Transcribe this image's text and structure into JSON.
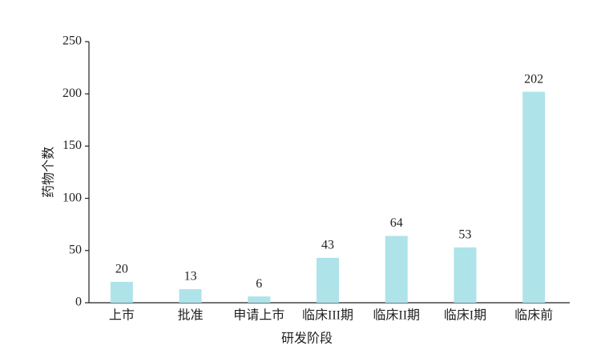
{
  "chart_data": {
    "type": "bar",
    "categories": [
      "上市",
      "批准",
      "申请上市",
      "临床III期",
      "临床II期",
      "临床I期",
      "临床前"
    ],
    "values": [
      20,
      13,
      6,
      43,
      64,
      53,
      202
    ],
    "color": "#aee3ea",
    "xlabel": "研发阶段",
    "ylabel": "药物个数",
    "ylim": [
      0,
      250
    ],
    "yticks": [
      0,
      50,
      100,
      150,
      200,
      250
    ]
  }
}
